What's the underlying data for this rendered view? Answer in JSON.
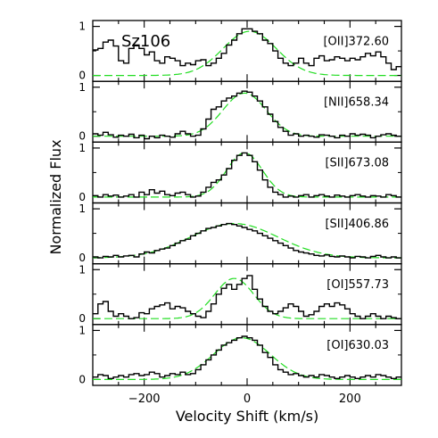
{
  "chart_data": {
    "type": "line",
    "title": "Sz106",
    "xlabel": "Velocity Shift (km/s)",
    "ylabel": "Normalized Flux",
    "xlim": [
      -300,
      300
    ],
    "x_ticks": [
      -200,
      0,
      200
    ],
    "x_tick_labels": [
      "−200",
      "0",
      "200"
    ],
    "y_ticks": [
      0,
      1
    ],
    "y_tick_labels": [
      "0",
      "1"
    ],
    "grid": false,
    "colors": {
      "data": "#000000",
      "fit": "#22dd22",
      "frame": "#000000"
    },
    "panels": [
      {
        "label": "[OII]372.60",
        "ylim": [
          -0.12,
          1.12
        ],
        "bin_width": 10,
        "x": [
          -295,
          -285,
          -275,
          -265,
          -255,
          -245,
          -235,
          -225,
          -215,
          -205,
          -195,
          -185,
          -175,
          -165,
          -155,
          -145,
          -135,
          -125,
          -115,
          -105,
          -95,
          -85,
          -75,
          -65,
          -55,
          -45,
          -35,
          -25,
          -15,
          -5,
          5,
          15,
          25,
          35,
          45,
          55,
          65,
          75,
          85,
          95,
          105,
          115,
          125,
          135,
          145,
          155,
          165,
          175,
          185,
          195,
          205,
          215,
          225,
          235,
          245,
          255,
          265,
          275,
          285,
          295
        ],
        "y": [
          0.52,
          0.55,
          0.68,
          0.72,
          0.6,
          0.3,
          0.25,
          0.55,
          0.62,
          0.55,
          0.42,
          0.48,
          0.3,
          0.25,
          0.38,
          0.35,
          0.3,
          0.2,
          0.25,
          0.22,
          0.3,
          0.32,
          0.2,
          0.25,
          0.35,
          0.45,
          0.62,
          0.72,
          0.85,
          0.95,
          0.95,
          0.9,
          0.85,
          0.72,
          0.65,
          0.5,
          0.35,
          0.25,
          0.2,
          0.25,
          0.35,
          0.25,
          0.2,
          0.35,
          0.4,
          0.3,
          0.32,
          0.38,
          0.35,
          0.3,
          0.35,
          0.32,
          0.38,
          0.45,
          0.4,
          0.48,
          0.38,
          0.25,
          0.12,
          0.18
        ],
        "fit": {
          "amplitude": 0.9,
          "center": 5,
          "sigma": 52
        }
      },
      {
        "label": "[NII]658.34",
        "ylim": [
          -0.12,
          1.12
        ],
        "bin_width": 10,
        "x": [
          -295,
          -285,
          -275,
          -265,
          -255,
          -245,
          -235,
          -225,
          -215,
          -205,
          -195,
          -185,
          -175,
          -165,
          -155,
          -145,
          -135,
          -125,
          -115,
          -105,
          -95,
          -85,
          -75,
          -65,
          -55,
          -45,
          -35,
          -25,
          -15,
          -5,
          5,
          15,
          25,
          35,
          45,
          55,
          65,
          75,
          85,
          95,
          105,
          115,
          125,
          135,
          145,
          155,
          165,
          175,
          185,
          195,
          205,
          215,
          225,
          235,
          245,
          255,
          265,
          275,
          285,
          295
        ],
        "y": [
          0.05,
          0.02,
          0.08,
          0.03,
          -0.02,
          0.02,
          0.0,
          0.04,
          -0.03,
          0.02,
          -0.05,
          0.0,
          -0.03,
          0.02,
          0.0,
          -0.02,
          0.05,
          0.1,
          0.05,
          0.0,
          0.02,
          0.15,
          0.35,
          0.55,
          0.6,
          0.72,
          0.78,
          0.82,
          0.88,
          0.92,
          0.9,
          0.82,
          0.72,
          0.6,
          0.45,
          0.3,
          0.18,
          0.1,
          0.02,
          0.05,
          0.0,
          0.02,
          0.0,
          -0.02,
          0.03,
          0.02,
          0.0,
          -0.03,
          0.02,
          0.0,
          0.05,
          0.02,
          0.04,
          0.02,
          -0.03,
          0.0,
          0.03,
          0.05,
          0.02,
          0.0
        ],
        "fit": {
          "amplitude": 0.88,
          "center": -5,
          "sigma": 42
        }
      },
      {
        "label": "[SII]673.08",
        "ylim": [
          -0.12,
          1.12
        ],
        "bin_width": 10,
        "x": [
          -295,
          -285,
          -275,
          -265,
          -255,
          -245,
          -235,
          -225,
          -215,
          -205,
          -195,
          -185,
          -175,
          -165,
          -155,
          -145,
          -135,
          -125,
          -115,
          -105,
          -95,
          -85,
          -75,
          -65,
          -55,
          -45,
          -35,
          -25,
          -15,
          -5,
          5,
          15,
          25,
          35,
          45,
          55,
          65,
          75,
          85,
          95,
          105,
          115,
          125,
          135,
          145,
          155,
          165,
          175,
          185,
          195,
          205,
          215,
          225,
          235,
          245,
          255,
          265,
          275,
          285,
          295
        ],
        "y": [
          0.03,
          0.0,
          0.05,
          0.02,
          0.04,
          0.0,
          0.02,
          0.05,
          0.0,
          0.1,
          0.05,
          0.15,
          0.08,
          0.12,
          0.05,
          0.03,
          0.08,
          0.1,
          0.05,
          0.0,
          0.02,
          0.1,
          0.2,
          0.3,
          0.35,
          0.45,
          0.58,
          0.75,
          0.85,
          0.9,
          0.85,
          0.72,
          0.55,
          0.35,
          0.2,
          0.1,
          0.05,
          0.0,
          0.02,
          0.0,
          0.03,
          0.05,
          0.0,
          0.03,
          0.05,
          0.02,
          0.0,
          0.04,
          0.02,
          0.0,
          0.03,
          0.05,
          0.02,
          0.0,
          0.03,
          0.02,
          0.0,
          0.05,
          0.03,
          0.0
        ],
        "fit": {
          "amplitude": 0.9,
          "center": -5,
          "sigma": 35
        }
      },
      {
        "label": "[SII]406.86",
        "ylim": [
          -0.12,
          1.12
        ],
        "bin_width": 10,
        "x": [
          -295,
          -285,
          -275,
          -265,
          -255,
          -245,
          -235,
          -225,
          -215,
          -205,
          -195,
          -185,
          -175,
          -165,
          -155,
          -145,
          -135,
          -125,
          -115,
          -105,
          -95,
          -85,
          -75,
          -65,
          -55,
          -45,
          -35,
          -25,
          -15,
          -5,
          5,
          15,
          25,
          35,
          45,
          55,
          65,
          75,
          85,
          95,
          105,
          115,
          125,
          135,
          145,
          155,
          165,
          175,
          185,
          195,
          205,
          215,
          225,
          235,
          245,
          255,
          265,
          275,
          285,
          295
        ],
        "y": [
          0.02,
          0.0,
          0.03,
          0.02,
          0.05,
          0.02,
          0.04,
          0.05,
          0.02,
          0.08,
          0.12,
          0.1,
          0.15,
          0.18,
          0.2,
          0.25,
          0.3,
          0.35,
          0.38,
          0.45,
          0.5,
          0.55,
          0.6,
          0.62,
          0.65,
          0.68,
          0.7,
          0.68,
          0.65,
          0.62,
          0.58,
          0.55,
          0.5,
          0.45,
          0.4,
          0.35,
          0.3,
          0.25,
          0.2,
          0.15,
          0.12,
          0.1,
          0.08,
          0.05,
          0.04,
          0.06,
          0.03,
          0.02,
          0.04,
          0.02,
          0.0,
          0.03,
          0.02,
          0.0,
          0.03,
          0.05,
          0.02,
          0.0,
          0.02,
          0.0
        ],
        "fit": {
          "amplitude": 0.7,
          "center": -25,
          "sigma": 85
        }
      },
      {
        "label": "[OI]557.73",
        "ylim": [
          -0.12,
          1.12
        ],
        "bin_width": 10,
        "x": [
          -295,
          -285,
          -275,
          -265,
          -255,
          -245,
          -235,
          -225,
          -215,
          -205,
          -195,
          -185,
          -175,
          -165,
          -155,
          -145,
          -135,
          -125,
          -115,
          -105,
          -95,
          -85,
          -75,
          -65,
          -55,
          -45,
          -35,
          -25,
          -15,
          -5,
          5,
          15,
          25,
          35,
          45,
          55,
          65,
          75,
          85,
          95,
          105,
          115,
          125,
          135,
          145,
          155,
          165,
          175,
          185,
          195,
          205,
          215,
          225,
          235,
          245,
          255,
          265,
          275,
          285,
          295
        ],
        "y": [
          0.1,
          0.3,
          0.35,
          0.15,
          0.05,
          0.1,
          0.05,
          0.0,
          0.02,
          0.12,
          0.1,
          0.2,
          0.25,
          0.28,
          0.32,
          0.2,
          0.25,
          0.22,
          0.15,
          0.1,
          0.05,
          0.02,
          0.15,
          0.3,
          0.5,
          0.62,
          0.7,
          0.6,
          0.7,
          0.82,
          0.88,
          0.6,
          0.4,
          0.25,
          0.15,
          0.1,
          0.15,
          0.22,
          0.3,
          0.25,
          0.15,
          0.05,
          0.08,
          0.15,
          0.25,
          0.3,
          0.25,
          0.32,
          0.28,
          0.2,
          0.1,
          0.05,
          0.0,
          0.05,
          0.1,
          0.05,
          0.0,
          0.05,
          0.02,
          0.0
        ],
        "fit": {
          "amplitude": 0.82,
          "center": -25,
          "sigma": 38
        }
      },
      {
        "label": "[OI]630.03",
        "ylim": [
          -0.12,
          1.12
        ],
        "bin_width": 10,
        "x": [
          -295,
          -285,
          -275,
          -265,
          -255,
          -245,
          -235,
          -225,
          -215,
          -205,
          -195,
          -185,
          -175,
          -165,
          -155,
          -145,
          -135,
          -125,
          -115,
          -105,
          -95,
          -85,
          -75,
          -65,
          -55,
          -45,
          -35,
          -25,
          -15,
          -5,
          5,
          15,
          25,
          35,
          45,
          55,
          65,
          75,
          85,
          95,
          105,
          115,
          125,
          135,
          145,
          155,
          165,
          175,
          185,
          195,
          205,
          215,
          225,
          235,
          245,
          255,
          265,
          275,
          285,
          295
        ],
        "y": [
          0.05,
          0.1,
          0.08,
          0.02,
          0.05,
          0.08,
          0.05,
          0.1,
          0.12,
          0.08,
          0.1,
          0.15,
          0.12,
          0.05,
          0.08,
          0.12,
          0.1,
          0.15,
          0.1,
          0.12,
          0.2,
          0.3,
          0.4,
          0.5,
          0.6,
          0.7,
          0.75,
          0.8,
          0.85,
          0.88,
          0.85,
          0.8,
          0.7,
          0.55,
          0.45,
          0.3,
          0.2,
          0.15,
          0.1,
          0.12,
          0.08,
          0.05,
          0.08,
          0.05,
          0.1,
          0.08,
          0.05,
          0.02,
          0.05,
          0.08,
          0.05,
          0.02,
          0.05,
          0.08,
          0.05,
          0.1,
          0.08,
          0.05,
          0.02,
          0.05
        ],
        "fit": {
          "amplitude": 0.85,
          "center": -10,
          "sigma": 55
        }
      }
    ]
  }
}
